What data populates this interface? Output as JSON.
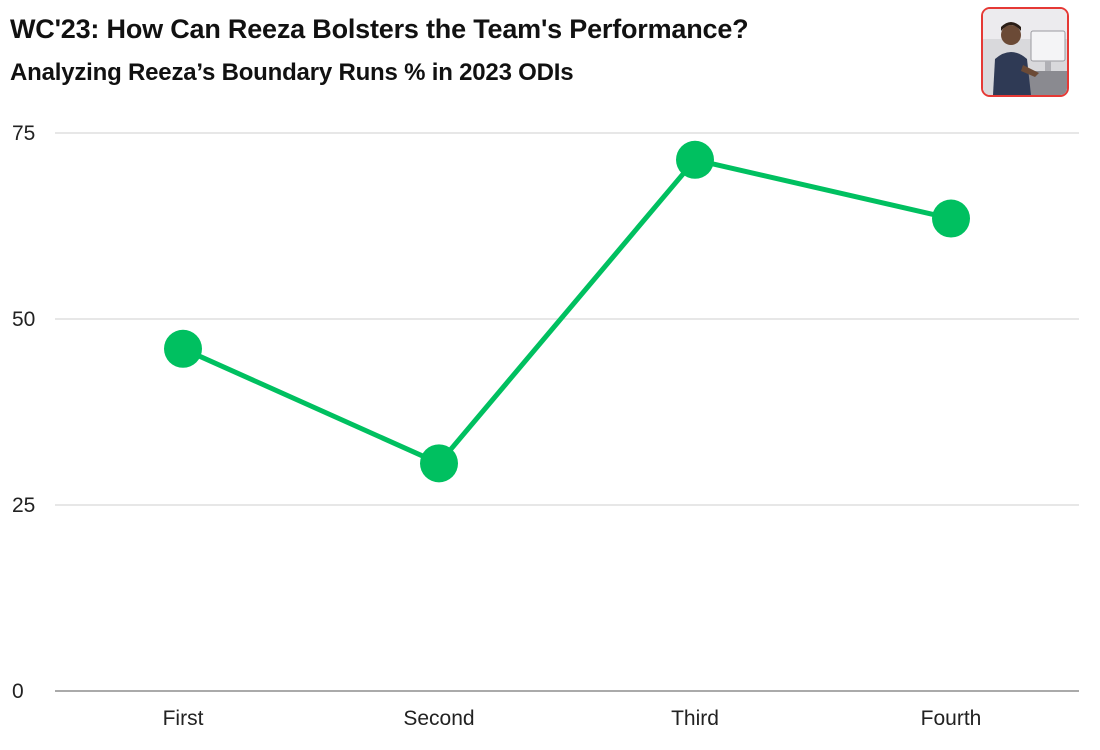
{
  "header": {
    "title": "WC'23: How Can Reeza Bolsters the Team's Performance?",
    "subtitle": "Analyzing Reeza’s Boundary Runs % in 2023 ODIs"
  },
  "avatar": {
    "icon": "author-photo-icon",
    "border_color": "#e53935"
  },
  "chart_data": {
    "type": "line",
    "title": "WC'23: How Can Reeza Bolsters the Team's Performance?",
    "subtitle": "Analyzing Reeza’s Boundary Runs % in 2023 ODIs",
    "categories": [
      "First",
      "Second",
      "Third",
      "Fourth"
    ],
    "series": [
      {
        "values": [
          46,
          30.6,
          71.4,
          63.5
        ],
        "color": "#00c060"
      }
    ],
    "ylim": [
      0,
      75
    ],
    "yticks": [
      0,
      25,
      50,
      75
    ],
    "ytick_labels": [
      "0",
      "25",
      "50",
      "75"
    ],
    "xlabel": "",
    "ylabel": "",
    "grid": true,
    "legend": "none"
  }
}
